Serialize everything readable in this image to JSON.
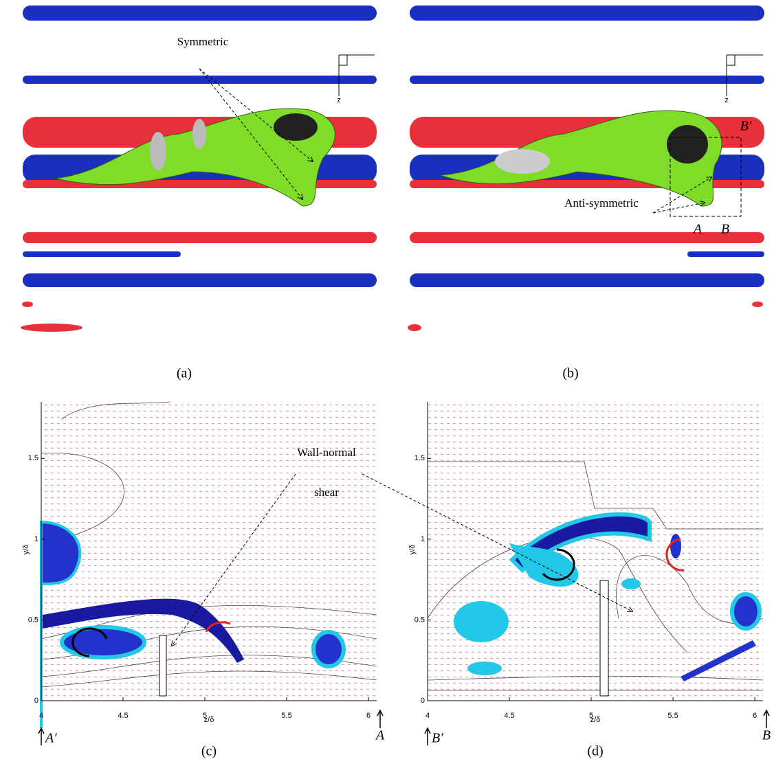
{
  "panels": [
    {
      "caption": "(a)",
      "axis_label": "z",
      "annotations": [
        "Symmetric"
      ]
    },
    {
      "caption": "(b)",
      "axis_label": "z",
      "annotations": [
        "Anti-symmetric",
        "A",
        "B",
        "B′"
      ]
    }
  ],
  "chart_data": [
    {
      "type": "vector-field",
      "caption": "(c)",
      "xlabel": "z/δ",
      "ylabel": "y/δ",
      "xlim": [
        4,
        6.05
      ],
      "ylim": [
        0,
        1.85
      ],
      "xticks": [
        4,
        4.5,
        5,
        5.5,
        6
      ],
      "yticks": [
        0,
        0.5,
        1,
        1.5
      ],
      "annotations": [
        "Wall-normal",
        "shear"
      ],
      "section_markers": [
        "A′",
        "A"
      ]
    },
    {
      "type": "vector-field",
      "caption": "(d)",
      "xlabel": "z/δ",
      "ylabel": "y/δ",
      "xlim": [
        4,
        6.05
      ],
      "ylim": [
        0,
        1.85
      ],
      "xticks": [
        4,
        4.5,
        5,
        5.5,
        6
      ],
      "yticks": [
        0,
        0.5,
        1,
        1.5
      ],
      "section_markers": [
        "B′",
        "B"
      ]
    }
  ]
}
